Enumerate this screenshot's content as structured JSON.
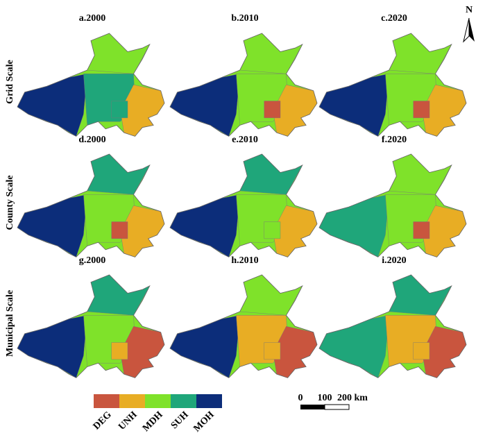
{
  "panels": [
    {
      "title": "a.2000"
    },
    {
      "title": "b.2010"
    },
    {
      "title": "c.2020"
    },
    {
      "title": "d.2000"
    },
    {
      "title": "e.2010"
    },
    {
      "title": "f.2020"
    },
    {
      "title": "g.2000"
    },
    {
      "title": "h.2010"
    },
    {
      "title": "i.2020"
    }
  ],
  "rows": [
    "Grid Scale",
    "County Scale",
    "Municipal Scale"
  ],
  "legend": {
    "items": [
      {
        "label": "DEG",
        "color": "#c9553e"
      },
      {
        "label": "UNH",
        "color": "#e8ad24"
      },
      {
        "label": "MDH",
        "color": "#7fe22a"
      },
      {
        "label": "SUH",
        "color": "#1fa67a"
      },
      {
        "label": "MOH",
        "color": "#0c2d7a"
      }
    ]
  },
  "scale_bar": {
    "labels": [
      "0",
      "100",
      "200 km"
    ]
  },
  "north": "N"
}
